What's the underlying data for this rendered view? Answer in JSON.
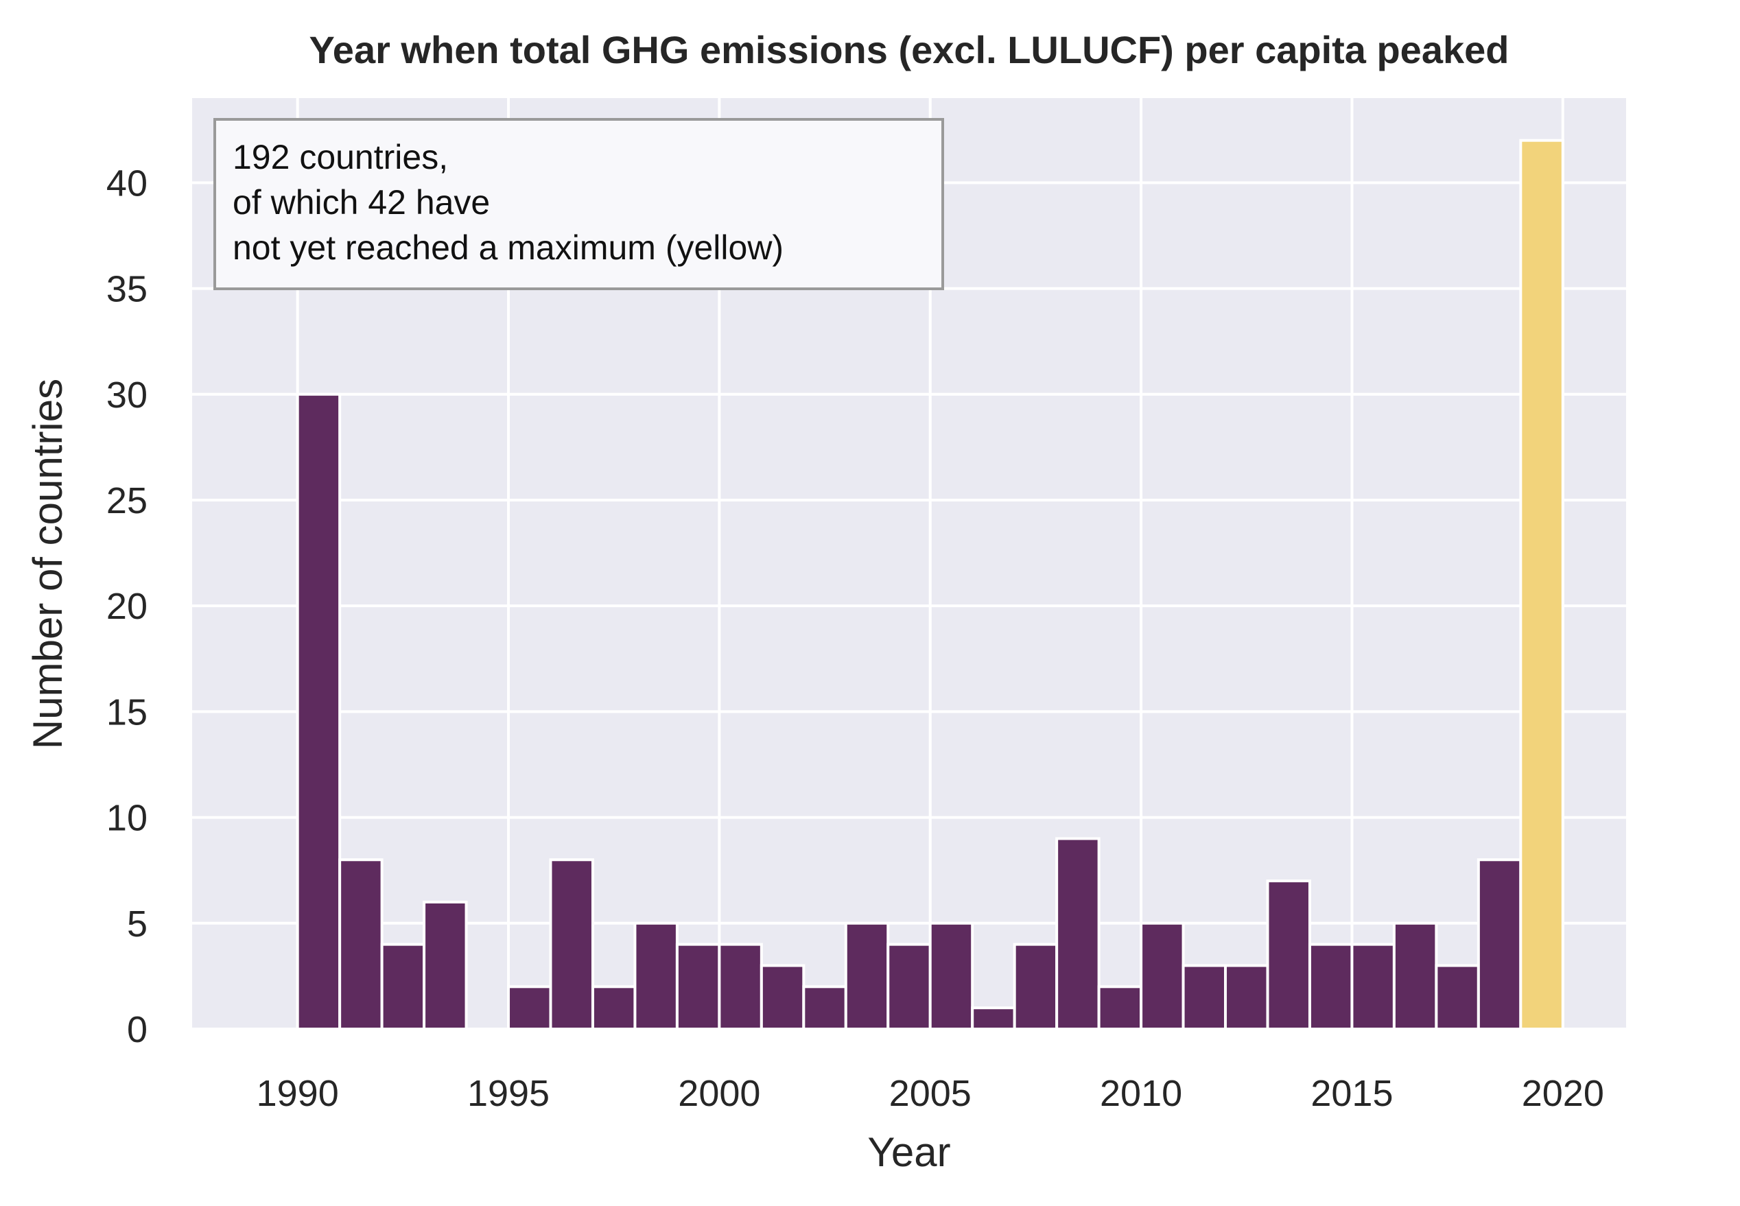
{
  "chart_data": {
    "type": "bar",
    "title": "Year when total GHG emissions (excl. LULUCF) per capita peaked",
    "xlabel": "Year",
    "ylabel": "Number of countries",
    "xlim": [
      1987.5,
      2021.5
    ],
    "ylim": [
      0,
      44
    ],
    "x_ticks": [
      1990,
      1995,
      2000,
      2005,
      2010,
      2015,
      2020
    ],
    "y_ticks": [
      0,
      5,
      10,
      15,
      20,
      25,
      30,
      35,
      40
    ],
    "grid": true,
    "bin_width": 1,
    "bars": [
      {
        "x": 1990,
        "value": 30,
        "status": "peaked"
      },
      {
        "x": 1991,
        "value": 8,
        "status": "peaked"
      },
      {
        "x": 1992,
        "value": 4,
        "status": "peaked"
      },
      {
        "x": 1993,
        "value": 6,
        "status": "peaked"
      },
      {
        "x": 1994,
        "value": 0,
        "status": "peaked"
      },
      {
        "x": 1995,
        "value": 2,
        "status": "peaked"
      },
      {
        "x": 1996,
        "value": 8,
        "status": "peaked"
      },
      {
        "x": 1997,
        "value": 2,
        "status": "peaked"
      },
      {
        "x": 1998,
        "value": 5,
        "status": "peaked"
      },
      {
        "x": 1999,
        "value": 4,
        "status": "peaked"
      },
      {
        "x": 2000,
        "value": 4,
        "status": "peaked"
      },
      {
        "x": 2001,
        "value": 3,
        "status": "peaked"
      },
      {
        "x": 2002,
        "value": 2,
        "status": "peaked"
      },
      {
        "x": 2003,
        "value": 5,
        "status": "peaked"
      },
      {
        "x": 2004,
        "value": 4,
        "status": "peaked"
      },
      {
        "x": 2005,
        "value": 5,
        "status": "peaked"
      },
      {
        "x": 2006,
        "value": 1,
        "status": "peaked"
      },
      {
        "x": 2007,
        "value": 4,
        "status": "peaked"
      },
      {
        "x": 2008,
        "value": 9,
        "status": "peaked"
      },
      {
        "x": 2009,
        "value": 2,
        "status": "peaked"
      },
      {
        "x": 2010,
        "value": 5,
        "status": "peaked"
      },
      {
        "x": 2011,
        "value": 3,
        "status": "peaked"
      },
      {
        "x": 2012,
        "value": 3,
        "status": "peaked"
      },
      {
        "x": 2013,
        "value": 7,
        "status": "peaked"
      },
      {
        "x": 2014,
        "value": 4,
        "status": "peaked"
      },
      {
        "x": 2015,
        "value": 4,
        "status": "peaked"
      },
      {
        "x": 2016,
        "value": 5,
        "status": "peaked"
      },
      {
        "x": 2017,
        "value": 3,
        "status": "peaked"
      },
      {
        "x": 2018,
        "value": 8,
        "status": "peaked"
      },
      {
        "x": 2019,
        "value": 42,
        "status": "not_yet_peaked"
      }
    ],
    "annotation": {
      "lines": [
        "192 countries,",
        "of which 42 have",
        "not yet reached a maximum (yellow)"
      ],
      "placement": "top-left"
    },
    "colors": {
      "peaked": "#5e2b5e",
      "not_yet_peaked": "#f2d37b",
      "plot_background": "#eaeaf2",
      "grid": "#ffffff"
    }
  }
}
